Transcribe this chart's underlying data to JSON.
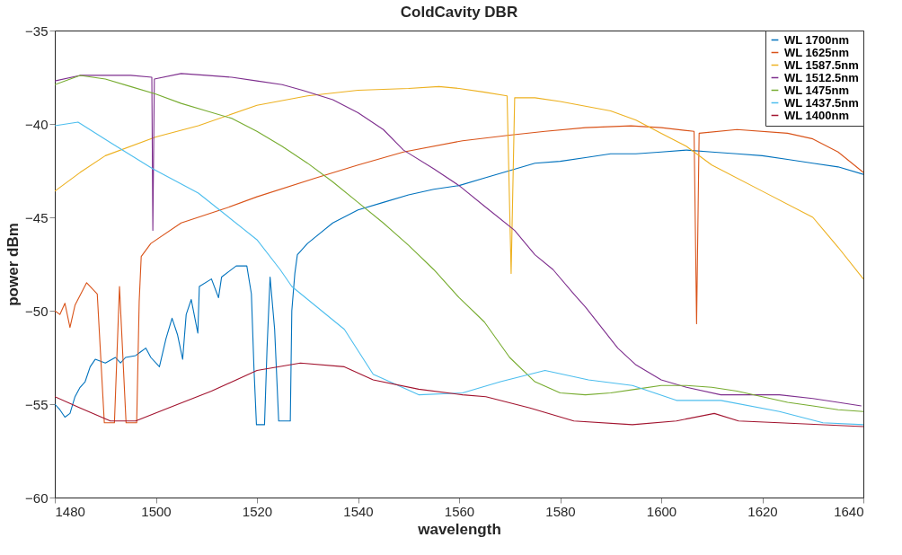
{
  "chart_data": {
    "type": "line",
    "title": "ColdCavity DBR",
    "xlabel": "wavelength",
    "ylabel": "power dBm",
    "xlim": [
      1480,
      1640
    ],
    "xticks": [
      1480,
      1500,
      1520,
      1540,
      1560,
      1580,
      1600,
      1620,
      1640
    ],
    "ylim": [
      -60,
      -35
    ],
    "yticks": [
      -60,
      -55,
      -50,
      -45,
      -40,
      -35
    ],
    "grid": false,
    "legend": "top right",
    "marker": "none",
    "line_style": "solid",
    "series": [
      {
        "name": "WL 1700nm",
        "color": "#0072bd",
        "x": [
          1480,
          1481,
          1482,
          1483,
          1484,
          1485,
          1486,
          1487,
          1488,
          1490,
          1492,
          1493,
          1494,
          1496,
          1497,
          1498,
          1499,
          1500.7,
          1502,
          1503.2,
          1504.3,
          1505.3,
          1506,
          1507,
          1508.3,
          1508.6,
          1511,
          1512.4,
          1513,
          1515.9,
          1518,
          1518.9,
          1519.4,
          1519.9,
          1521.5,
          1522,
          1522.6,
          1523.5,
          1524.3,
          1526.6,
          1526.9,
          1527.5,
          1528,
          1530,
          1535,
          1540,
          1545,
          1550,
          1555,
          1560,
          1565,
          1570,
          1575,
          1580,
          1585,
          1590,
          1595,
          1600,
          1605,
          1610,
          1615,
          1620,
          1625,
          1630,
          1635,
          1640
        ],
        "values": [
          -55,
          -55.3,
          -55.7,
          -55.5,
          -54.6,
          -54.1,
          -53.8,
          -53,
          -52.6,
          -52.8,
          -52.5,
          -52.8,
          -52.5,
          -52.4,
          -52.2,
          -52,
          -52.5,
          -53,
          -51.5,
          -50.4,
          -51.3,
          -52.6,
          -50.2,
          -49.4,
          -51.2,
          -48.7,
          -48.3,
          -49.3,
          -48.2,
          -47.6,
          -47.6,
          -49.1,
          -53,
          -56.1,
          -56.1,
          -52,
          -48.2,
          -51,
          -55.9,
          -55.9,
          -50,
          -48,
          -47,
          -46.4,
          -45.3,
          -44.6,
          -44.2,
          -43.8,
          -43.5,
          -43.3,
          -42.9,
          -42.5,
          -42.1,
          -42,
          -41.8,
          -41.6,
          -41.6,
          -41.5,
          -41.4,
          -41.5,
          -41.6,
          -41.7,
          -41.9,
          -42.1,
          -42.3,
          -42.7
        ]
      },
      {
        "name": "WL 1625nm",
        "color": "#d95319",
        "x": [
          1480,
          1481,
          1482,
          1483,
          1484,
          1486.3,
          1488.4,
          1489.8,
          1491.8,
          1492.8,
          1494.1,
          1496.2,
          1496.7,
          1497.1,
          1499,
          1505,
          1514,
          1520,
          1531.6,
          1540,
          1549,
          1560.7,
          1570,
          1577,
          1585,
          1594,
          1600,
          1606.5,
          1607,
          1607.5,
          1615,
          1625,
          1630,
          1635,
          1640
        ],
        "values": [
          -50,
          -50.2,
          -49.6,
          -50.9,
          -49.7,
          -48.5,
          -49.1,
          -56,
          -56,
          -48.7,
          -56,
          -56,
          -49.5,
          -47.1,
          -46.4,
          -45.3,
          -44.5,
          -43.9,
          -42.9,
          -42.2,
          -41.5,
          -40.9,
          -40.6,
          -40.4,
          -40.2,
          -40.1,
          -40.2,
          -40.4,
          -50.7,
          -40.5,
          -40.3,
          -40.5,
          -40.8,
          -41.5,
          -42.6
        ]
      },
      {
        "name": "WL 1587.5nm",
        "color": "#edb120",
        "x": [
          1480,
          1485,
          1490,
          1500,
          1508.4,
          1520,
          1530,
          1540,
          1550,
          1556,
          1560,
          1565,
          1569.5,
          1570.3,
          1571,
          1575,
          1580,
          1590,
          1595,
          1600,
          1605,
          1610,
          1620,
          1630,
          1635,
          1640
        ],
        "values": [
          -43.6,
          -42.6,
          -41.7,
          -40.7,
          -40.1,
          -39,
          -38.5,
          -38.2,
          -38.1,
          -38,
          -38.1,
          -38.3,
          -38.5,
          -48,
          -38.6,
          -38.6,
          -38.8,
          -39.3,
          -39.8,
          -40.5,
          -41.2,
          -42.2,
          -43.6,
          -45,
          -46.6,
          -48.3
        ]
      },
      {
        "name": "WL 1512.5nm",
        "color": "#7e2f8e",
        "x": [
          1480,
          1485,
          1490,
          1495,
          1499.2,
          1499.4,
          1499.7,
          1505,
          1510,
          1515,
          1520,
          1525,
          1529,
          1535,
          1540,
          1545,
          1549,
          1555,
          1560,
          1565,
          1571,
          1575,
          1578.6,
          1582.7,
          1585,
          1591.4,
          1595,
          1600,
          1605,
          1611.8,
          1615,
          1623.4,
          1630,
          1635,
          1639.6
        ],
        "values": [
          -37.7,
          -37.4,
          -37.4,
          -37.4,
          -37.5,
          -45.7,
          -37.6,
          -37.3,
          -37.4,
          -37.5,
          -37.7,
          -37.9,
          -38.2,
          -38.7,
          -39.4,
          -40.3,
          -41.4,
          -42.4,
          -43.3,
          -44.4,
          -45.7,
          -47,
          -47.8,
          -49.1,
          -49.8,
          -52,
          -52.9,
          -53.7,
          -54.1,
          -54.5,
          -54.5,
          -54.5,
          -54.7,
          -54.9,
          -55.1
        ]
      },
      {
        "name": "WL 1475nm",
        "color": "#77ac30",
        "x": [
          1480,
          1485,
          1490,
          1495,
          1500,
          1505,
          1510,
          1515,
          1520,
          1525,
          1530,
          1535,
          1540,
          1545,
          1550,
          1555,
          1560,
          1565,
          1570,
          1575,
          1580,
          1585,
          1590,
          1595,
          1600,
          1605,
          1610,
          1615,
          1620,
          1625,
          1630,
          1635,
          1640
        ],
        "values": [
          -37.9,
          -37.4,
          -37.6,
          -38,
          -38.4,
          -38.9,
          -39.3,
          -39.7,
          -40.4,
          -41.2,
          -42.1,
          -43.1,
          -44.2,
          -45.3,
          -46.5,
          -47.8,
          -49.3,
          -50.6,
          -52.5,
          -53.8,
          -54.4,
          -54.5,
          -54.4,
          -54.2,
          -54,
          -54,
          -54.1,
          -54.3,
          -54.6,
          -54.9,
          -55.1,
          -55.3,
          -55.4
        ]
      },
      {
        "name": "WL 1437.5nm",
        "color": "#4dbeee",
        "x": [
          1480,
          1484.6,
          1491,
          1499.4,
          1508.4,
          1520,
          1524.6,
          1526.9,
          1537.3,
          1543,
          1552,
          1560.7,
          1568.2,
          1577,
          1585.6,
          1594.3,
          1603,
          1611.8,
          1623.4,
          1632,
          1640
        ],
        "values": [
          -40.1,
          -39.9,
          -41,
          -42.4,
          -43.7,
          -46.2,
          -47.8,
          -48.7,
          -51,
          -53.4,
          -54.5,
          -54.4,
          -53.8,
          -53.2,
          -53.7,
          -54,
          -54.8,
          -54.8,
          -55.4,
          -56,
          -56.1
        ]
      },
      {
        "name": "WL 1400nm",
        "color": "#a2142f",
        "x": [
          1480,
          1485,
          1491,
          1496,
          1502.5,
          1511,
          1520,
          1528.6,
          1537.3,
          1543,
          1552,
          1560.7,
          1565.3,
          1574,
          1582.7,
          1594.3,
          1603,
          1610.5,
          1615.3,
          1623.4,
          1640
        ],
        "values": [
          -54.6,
          -55.2,
          -55.9,
          -55.9,
          -55.2,
          -54.3,
          -53.2,
          -52.8,
          -53,
          -53.7,
          -54.2,
          -54.5,
          -54.6,
          -55.2,
          -55.9,
          -56.1,
          -55.9,
          -55.5,
          -55.9,
          -56,
          -56.2
        ]
      }
    ]
  }
}
